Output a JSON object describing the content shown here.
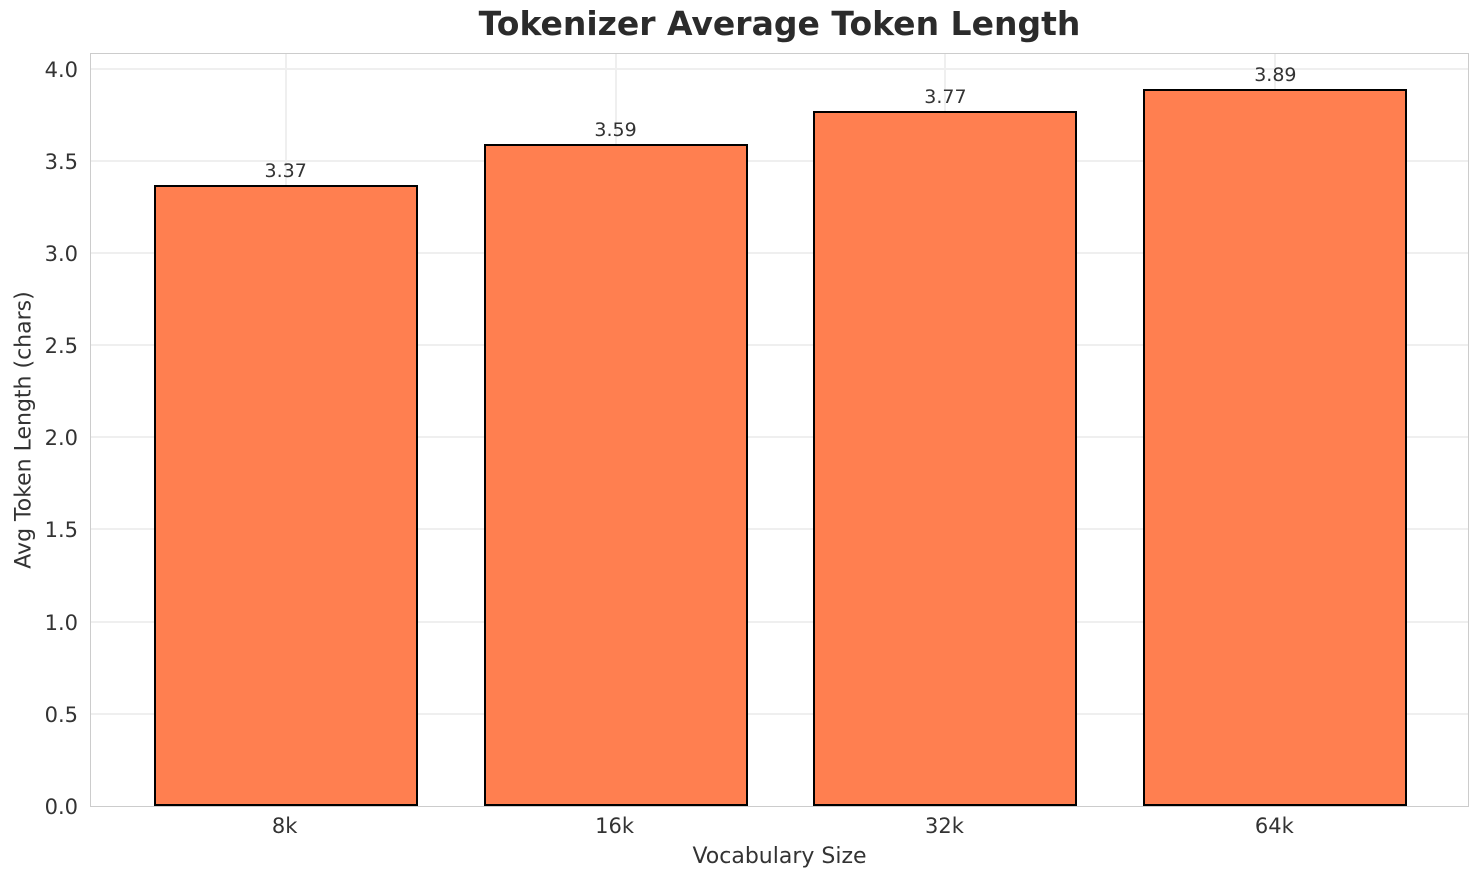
{
  "chart_data": {
    "type": "bar",
    "title": "Tokenizer Average Token Length",
    "xlabel": "Vocabulary Size",
    "ylabel": "Avg Token Length (chars)",
    "categories": [
      "8k",
      "16k",
      "32k",
      "64k"
    ],
    "values": [
      3.37,
      3.59,
      3.77,
      3.89
    ],
    "value_labels": [
      "3.37",
      "3.59",
      "3.77",
      "3.89"
    ],
    "yticks": [
      0.0,
      0.5,
      1.0,
      1.5,
      2.0,
      2.5,
      3.0,
      3.5,
      4.0
    ],
    "ytick_labels": [
      "0.0",
      "0.5",
      "1.0",
      "1.5",
      "2.0",
      "2.5",
      "3.0",
      "3.5",
      "4.0"
    ],
    "ylim": [
      0,
      4.09
    ],
    "grid": true,
    "legend_position": "none",
    "colors": {
      "bar_fill": "#FF7F50",
      "bar_edge": "#000000",
      "grid": "#efefef",
      "spine": "#cccccc",
      "tick_text": "#333333",
      "title_text": "#2b2b2b"
    }
  }
}
